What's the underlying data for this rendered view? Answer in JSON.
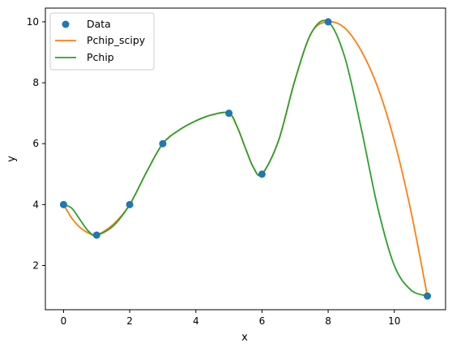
{
  "chart_data": {
    "type": "line",
    "xlabel": "x",
    "ylabel": "y",
    "xlim": [
      -0.55,
      11.55
    ],
    "ylim": [
      0.55,
      10.45
    ],
    "xticks": [
      0,
      2,
      4,
      6,
      8,
      10
    ],
    "yticks": [
      2,
      4,
      6,
      8,
      10
    ],
    "grid": false,
    "legend_position": "top-left",
    "points": {
      "name": "Data",
      "color": "#1f77b4",
      "x": [
        0,
        1,
        2,
        3,
        5,
        6,
        8,
        11
      ],
      "y": [
        4,
        3,
        4,
        6,
        7,
        5,
        10,
        1
      ]
    },
    "series": [
      {
        "name": "Pchip_scipy",
        "color": "#ff7f0e",
        "x": [
          0,
          0.25,
          0.5,
          0.75,
          1,
          1.5,
          2,
          2.5,
          3,
          3.5,
          4,
          4.5,
          5,
          5.25,
          5.5,
          5.75,
          6,
          6.5,
          7,
          7.5,
          8,
          8.5,
          9,
          9.5,
          10,
          10.5,
          11
        ],
        "y": [
          4,
          3.55,
          3.25,
          3.07,
          3,
          3.35,
          4,
          5.05,
          6,
          6.45,
          6.75,
          6.95,
          7,
          6.55,
          5.85,
          5.2,
          5,
          6.1,
          8.1,
          9.65,
          10,
          9.8,
          9.05,
          7.85,
          6.1,
          3.8,
          1
        ]
      },
      {
        "name": "Pchip",
        "color": "#2ca02c",
        "x": [
          0,
          0.25,
          0.5,
          0.75,
          1,
          1.5,
          2,
          2.5,
          3,
          3.5,
          4,
          4.5,
          5,
          5.25,
          5.5,
          5.75,
          6,
          6.5,
          7,
          7.5,
          8,
          8.5,
          9,
          9.5,
          10,
          10.5,
          11
        ],
        "y": [
          4,
          3.88,
          3.5,
          3.13,
          3,
          3.3,
          4,
          5.05,
          6,
          6.45,
          6.75,
          6.95,
          7,
          6.55,
          5.85,
          5.2,
          5,
          6.1,
          8.1,
          9.65,
          10,
          8.85,
          6.5,
          3.9,
          2,
          1.2,
          1
        ]
      }
    ]
  }
}
